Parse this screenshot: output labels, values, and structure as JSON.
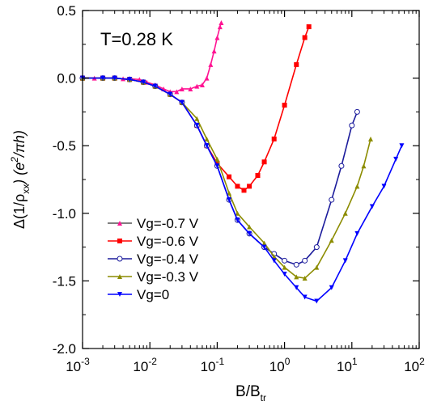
{
  "chart_data": {
    "type": "scatter",
    "title": "",
    "annotation": "T=0.28 K",
    "xscale": "log",
    "xlim": [
      0.001,
      100
    ],
    "ylim": [
      -2.0,
      0.5
    ],
    "xticks": [
      0.001,
      0.01,
      0.1,
      1,
      10,
      100
    ],
    "xtick_labels": [
      {
        "base": "10",
        "exp": "-3"
      },
      {
        "base": "10",
        "exp": "-2"
      },
      {
        "base": "10",
        "exp": "-1"
      },
      {
        "base": "10",
        "exp": "0"
      },
      {
        "base": "10",
        "exp": "1"
      },
      {
        "base": "10",
        "exp": "2"
      }
    ],
    "yticks": [
      0.5,
      0.0,
      -0.5,
      -1.0,
      -1.5,
      -2.0
    ],
    "ytick_labels": [
      "0.5",
      "0.0",
      "-0.5",
      "-1.0",
      "-1.5",
      "-2.0"
    ],
    "xlabel": {
      "main": "B/B",
      "sub": "tr"
    },
    "ylabel": {
      "p1": "Δ(1/ρ",
      "p1sub": "xx",
      "p2": ")   (e",
      "p2sup": "2",
      "p3": "/πh)"
    },
    "grid": false,
    "legend_position": "bottom-left",
    "series": [
      {
        "name": "Vg=-0.7 V",
        "color": "#ff1493",
        "marker": "triangle",
        "points": [
          [
            0.001,
            0.0
          ],
          [
            0.0015,
            0.0
          ],
          [
            0.002,
            0.0
          ],
          [
            0.003,
            0.0
          ],
          [
            0.004,
            -0.005
          ],
          [
            0.005,
            -0.005
          ],
          [
            0.007,
            -0.01
          ],
          [
            0.009,
            -0.03
          ],
          [
            0.012,
            -0.05
          ],
          [
            0.016,
            -0.08
          ],
          [
            0.02,
            -0.1
          ],
          [
            0.025,
            -0.1
          ],
          [
            0.03,
            -0.08
          ],
          [
            0.04,
            -0.08
          ],
          [
            0.05,
            -0.06
          ],
          [
            0.06,
            -0.05
          ],
          [
            0.07,
            0.0
          ],
          [
            0.08,
            0.1
          ],
          [
            0.09,
            0.2
          ],
          [
            0.1,
            0.3
          ],
          [
            0.11,
            0.38
          ],
          [
            0.115,
            0.41
          ]
        ]
      },
      {
        "name": "Vg=-0.6 V",
        "color": "#ff0000",
        "marker": "square",
        "points": [
          [
            0.001,
            0.0
          ],
          [
            0.002,
            0.0
          ],
          [
            0.003,
            0.0
          ],
          [
            0.005,
            -0.01
          ],
          [
            0.008,
            -0.03
          ],
          [
            0.012,
            -0.06
          ],
          [
            0.02,
            -0.12
          ],
          [
            0.03,
            -0.18
          ],
          [
            0.05,
            -0.35
          ],
          [
            0.07,
            -0.5
          ],
          [
            0.1,
            -0.63
          ],
          [
            0.15,
            -0.73
          ],
          [
            0.2,
            -0.8
          ],
          [
            0.25,
            -0.83
          ],
          [
            0.3,
            -0.8
          ],
          [
            0.4,
            -0.72
          ],
          [
            0.5,
            -0.62
          ],
          [
            0.7,
            -0.45
          ],
          [
            1.0,
            -0.2
          ],
          [
            1.5,
            0.1
          ],
          [
            2.0,
            0.3
          ],
          [
            2.3,
            0.38
          ]
        ]
      },
      {
        "name": "Vg=-0.4 V",
        "color": "#1c1c9c",
        "marker": "circle",
        "points": [
          [
            0.001,
            0.0
          ],
          [
            0.002,
            0.0
          ],
          [
            0.003,
            0.0
          ],
          [
            0.005,
            -0.01
          ],
          [
            0.008,
            -0.03
          ],
          [
            0.012,
            -0.06
          ],
          [
            0.02,
            -0.12
          ],
          [
            0.03,
            -0.18
          ],
          [
            0.05,
            -0.35
          ],
          [
            0.07,
            -0.5
          ],
          [
            0.1,
            -0.65
          ],
          [
            0.15,
            -0.9
          ],
          [
            0.2,
            -1.05
          ],
          [
            0.3,
            -1.15
          ],
          [
            0.5,
            -1.25
          ],
          [
            0.7,
            -1.3
          ],
          [
            1.0,
            -1.35
          ],
          [
            1.5,
            -1.38
          ],
          [
            2.0,
            -1.35
          ],
          [
            3.0,
            -1.25
          ],
          [
            5.0,
            -0.9
          ],
          [
            7.0,
            -0.65
          ],
          [
            10.0,
            -0.35
          ],
          [
            12.0,
            -0.25
          ]
        ]
      },
      {
        "name": "Vg=-0.3 V",
        "color": "#8c8c00",
        "marker": "triangle",
        "points": [
          [
            0.001,
            0.0
          ],
          [
            0.002,
            0.0
          ],
          [
            0.003,
            0.0
          ],
          [
            0.005,
            -0.01
          ],
          [
            0.008,
            -0.03
          ],
          [
            0.012,
            -0.06
          ],
          [
            0.02,
            -0.12
          ],
          [
            0.03,
            -0.18
          ],
          [
            0.05,
            -0.3
          ],
          [
            0.07,
            -0.45
          ],
          [
            0.1,
            -0.6
          ],
          [
            0.15,
            -0.85
          ],
          [
            0.2,
            -1.0
          ],
          [
            0.3,
            -1.1
          ],
          [
            0.5,
            -1.22
          ],
          [
            0.7,
            -1.32
          ],
          [
            1.0,
            -1.4
          ],
          [
            1.5,
            -1.47
          ],
          [
            2.0,
            -1.48
          ],
          [
            3.0,
            -1.4
          ],
          [
            5.0,
            -1.2
          ],
          [
            8.0,
            -1.0
          ],
          [
            12.0,
            -0.8
          ],
          [
            15.0,
            -0.65
          ],
          [
            19.0,
            -0.45
          ]
        ]
      },
      {
        "name": "Vg=0",
        "color": "#0000ff",
        "marker": "triangle-down",
        "points": [
          [
            0.001,
            0.0
          ],
          [
            0.002,
            0.0
          ],
          [
            0.003,
            0.0
          ],
          [
            0.005,
            -0.01
          ],
          [
            0.008,
            -0.03
          ],
          [
            0.012,
            -0.06
          ],
          [
            0.02,
            -0.12
          ],
          [
            0.03,
            -0.18
          ],
          [
            0.05,
            -0.35
          ],
          [
            0.07,
            -0.5
          ],
          [
            0.1,
            -0.65
          ],
          [
            0.15,
            -0.9
          ],
          [
            0.2,
            -1.05
          ],
          [
            0.3,
            -1.15
          ],
          [
            0.5,
            -1.25
          ],
          [
            0.7,
            -1.35
          ],
          [
            1.0,
            -1.45
          ],
          [
            1.5,
            -1.55
          ],
          [
            2.0,
            -1.62
          ],
          [
            3.0,
            -1.65
          ],
          [
            5.0,
            -1.55
          ],
          [
            8.0,
            -1.35
          ],
          [
            12.0,
            -1.15
          ],
          [
            20.0,
            -0.95
          ],
          [
            30.0,
            -0.8
          ],
          [
            45.0,
            -0.6
          ],
          [
            55.0,
            -0.5
          ]
        ]
      }
    ]
  }
}
